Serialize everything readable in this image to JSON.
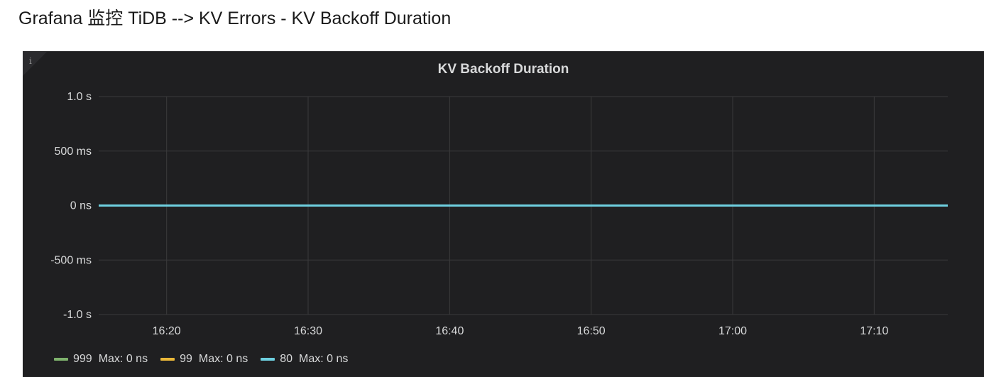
{
  "caption": "Grafana 监控 TiDB --> KV Errors - KV Backoff Duration",
  "panel": {
    "info_icon": "info-icon",
    "info_glyph": "i"
  },
  "chart_data": {
    "type": "line",
    "title": "KV Backoff Duration",
    "xlabel": "",
    "ylabel": "",
    "y_tick_labels": [
      "1.0 s",
      "500 ms",
      "0 ns",
      "-500 ms",
      "-1.0 s"
    ],
    "y_tick_values": [
      1000,
      500,
      0,
      -500,
      -1000
    ],
    "ylim": [
      -1000,
      1000
    ],
    "y_unit": "ms",
    "x_tick_labels": [
      "16:20",
      "16:30",
      "16:40",
      "16:50",
      "17:00",
      "17:10"
    ],
    "x_tick_minutes": [
      980,
      990,
      1000,
      1010,
      1020,
      1030
    ],
    "xlim_minutes": [
      975.2,
      1035.2
    ],
    "grid": true,
    "legend_position": "bottom-left",
    "series": [
      {
        "name": "999",
        "color": "#7eb26d",
        "max_label": "Max: 0 ns",
        "x_minutes": [
          975.2,
          1035.2
        ],
        "values": [
          0,
          0
        ]
      },
      {
        "name": "99",
        "color": "#eab839",
        "max_label": "Max: 0 ns",
        "x_minutes": [
          975.2,
          1035.2
        ],
        "values": [
          0,
          0
        ]
      },
      {
        "name": "80",
        "color": "#6ed0e0",
        "max_label": "Max: 0 ns",
        "x_minutes": [
          975.2,
          1035.2
        ],
        "values": [
          0,
          0
        ]
      }
    ]
  }
}
